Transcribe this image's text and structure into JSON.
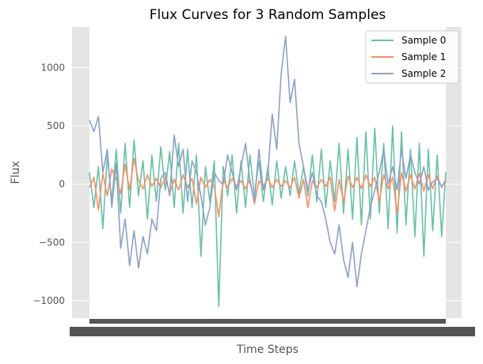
{
  "chart_data": {
    "type": "line",
    "title": "Flux Curves for 3 Random Samples",
    "xlabel": "Time Steps",
    "ylabel": "Flux",
    "xlim": [
      0,
      3197
    ],
    "ylim": [
      -1150,
      1350
    ],
    "yticks": [
      -1000,
      -500,
      0,
      500,
      1000
    ],
    "ytick_labels": [
      "−1000",
      "−500",
      "0",
      "500",
      "1000"
    ],
    "grid": true,
    "legend_position": "top-right",
    "series": [
      {
        "name": "Sample 0",
        "color": "#66c2a5",
        "x": [
          0,
          40,
          80,
          120,
          160,
          200,
          240,
          280,
          320,
          360,
          400,
          440,
          480,
          520,
          560,
          600,
          640,
          680,
          720,
          760,
          800,
          840,
          880,
          920,
          960,
          1000,
          1040,
          1080,
          1120,
          1160,
          1200,
          1240,
          1280,
          1320,
          1360,
          1400,
          1440,
          1480,
          1520,
          1560,
          1600,
          1640,
          1680,
          1720,
          1760,
          1800,
          1840,
          1880,
          1920,
          1960,
          2000,
          2040,
          2080,
          2120,
          2160,
          2200,
          2240,
          2280,
          2320,
          2360,
          2400,
          2440,
          2480,
          2520,
          2560,
          2600,
          2640,
          2680,
          2720,
          2760,
          2800,
          2840,
          2880,
          2920,
          2960,
          3000,
          3040,
          3080,
          3120,
          3160,
          3197
        ],
        "y": [
          100,
          -200,
          150,
          -380,
          250,
          -150,
          300,
          -250,
          350,
          -200,
          380,
          -100,
          200,
          -300,
          250,
          -150,
          320,
          -50,
          280,
          -200,
          350,
          -250,
          300,
          -200,
          250,
          -620,
          150,
          -150,
          200,
          -1050,
          150,
          -100,
          250,
          -250,
          200,
          -200,
          250,
          -100,
          200,
          -150,
          150,
          -180,
          200,
          -120,
          150,
          -100,
          200,
          -80,
          150,
          -100,
          250,
          -150,
          300,
          -200,
          200,
          -150,
          350,
          -250,
          300,
          -300,
          400,
          -350,
          450,
          -300,
          480,
          -250,
          350,
          -380,
          500,
          -420,
          450,
          -350,
          300,
          -450,
          350,
          -620,
          300,
          -400,
          250,
          -450,
          100
        ]
      },
      {
        "name": "Sample 1",
        "color": "#fc8d62",
        "x": [
          0,
          40,
          80,
          120,
          160,
          200,
          240,
          280,
          320,
          360,
          400,
          440,
          480,
          520,
          560,
          600,
          640,
          680,
          720,
          760,
          800,
          840,
          880,
          920,
          960,
          1000,
          1040,
          1080,
          1120,
          1160,
          1200,
          1240,
          1280,
          1320,
          1360,
          1400,
          1440,
          1480,
          1520,
          1560,
          1600,
          1640,
          1680,
          1720,
          1760,
          1800,
          1840,
          1880,
          1920,
          1960,
          2000,
          2040,
          2080,
          2120,
          2160,
          2200,
          2240,
          2280,
          2320,
          2360,
          2400,
          2440,
          2480,
          2520,
          2560,
          2600,
          2640,
          2680,
          2720,
          2760,
          2800,
          2840,
          2880,
          2920,
          2960,
          3000,
          3040,
          3080,
          3120,
          3160,
          3197
        ],
        "y": [
          -30,
          60,
          -220,
          90,
          -100,
          130,
          40,
          -80,
          170,
          -50,
          220,
          30,
          -40,
          80,
          -20,
          50,
          -30,
          60,
          -80,
          40,
          -50,
          80,
          -30,
          50,
          -170,
          60,
          -30,
          40,
          -20,
          -280,
          40,
          -30,
          50,
          -20,
          30,
          -40,
          40,
          -170,
          30,
          -20,
          50,
          -30,
          40,
          -20,
          30,
          -30,
          60,
          -120,
          40,
          -200,
          30,
          -30,
          40,
          -20,
          60,
          -230,
          40,
          -150,
          70,
          -30,
          60,
          -40,
          80,
          -20,
          60,
          -150,
          80,
          -40,
          60,
          -250,
          100,
          -60,
          80,
          -40,
          90,
          -60,
          80,
          -40,
          70,
          -30,
          40
        ]
      },
      {
        "name": "Sample 2",
        "color": "#8da0cb",
        "x": [
          0,
          40,
          80,
          120,
          160,
          200,
          240,
          280,
          320,
          360,
          400,
          440,
          480,
          520,
          560,
          600,
          640,
          680,
          720,
          760,
          800,
          840,
          880,
          920,
          960,
          1000,
          1040,
          1080,
          1120,
          1160,
          1200,
          1240,
          1280,
          1320,
          1360,
          1400,
          1440,
          1480,
          1520,
          1560,
          1600,
          1640,
          1680,
          1720,
          1760,
          1800,
          1840,
          1880,
          1920,
          1960,
          2000,
          2040,
          2080,
          2120,
          2160,
          2200,
          2240,
          2280,
          2320,
          2360,
          2400,
          2440,
          2480,
          2520,
          2560,
          2600,
          2640,
          2680,
          2720,
          2760,
          2800,
          2840,
          2880,
          2920,
          2960,
          3000,
          3040,
          3080,
          3120,
          3160,
          3197
        ],
        "y": [
          550,
          450,
          580,
          100,
          300,
          -200,
          180,
          -550,
          -300,
          -700,
          -400,
          -720,
          -450,
          -600,
          -300,
          -400,
          50,
          100,
          -100,
          420,
          150,
          300,
          -150,
          200,
          100,
          -100,
          -350,
          -200,
          100,
          30,
          0,
          250,
          100,
          -50,
          150,
          350,
          20,
          -150,
          300,
          -50,
          80,
          600,
          300,
          950,
          1270,
          700,
          900,
          350,
          150,
          -50,
          100,
          -100,
          -150,
          -300,
          -500,
          -600,
          -350,
          -650,
          -800,
          -500,
          -880,
          -600,
          -400,
          -200,
          -50,
          100,
          300,
          0,
          150,
          -50,
          300,
          50,
          250,
          100,
          0,
          150,
          -50,
          20,
          50,
          -20,
          30
        ]
      }
    ]
  }
}
